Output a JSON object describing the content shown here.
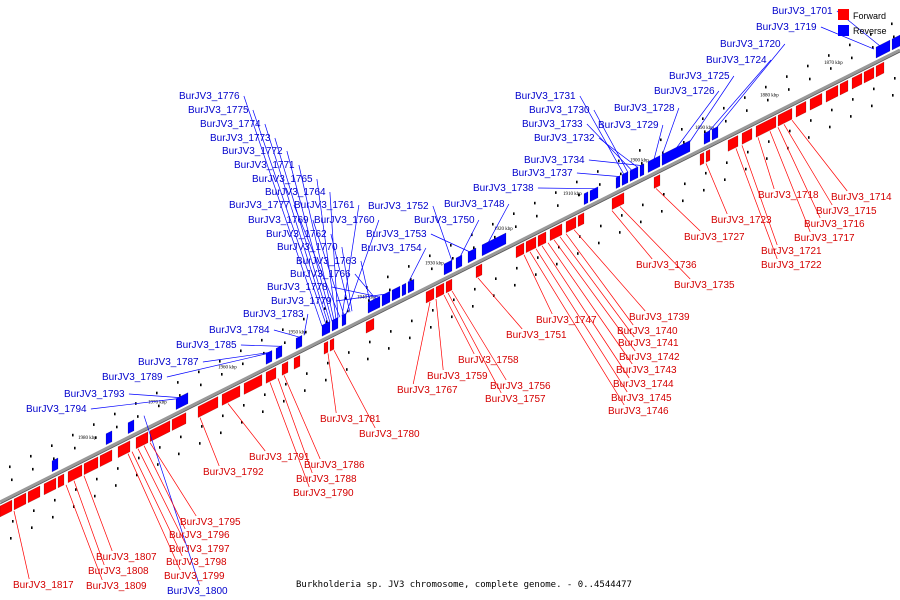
{
  "caption": "Burkholderia sp. JV3 chromosome, complete genome. - 0..4544477",
  "legend": {
    "forward": {
      "label": "Forward",
      "color": "#ff0000"
    },
    "reverse": {
      "label": "Reverse",
      "color": "#0000ff"
    }
  },
  "backbone_color": "#999999",
  "kbp_ticks": [
    "1870 kbp",
    "1880 kbp",
    "1890 kbp",
    "1900 kbp",
    "1910 kbp",
    "1920 kbp",
    "1930 kbp",
    "1940 kbp",
    "1950 kbp",
    "1960 kbp",
    "1970 kbp",
    "1980 kbp"
  ],
  "reverse_genes": [
    "BurJV3_1701",
    "BurJV3_1719",
    "BurJV3_1720",
    "BurJV3_1724",
    "BurJV3_1725",
    "BurJV3_1726",
    "BurJV3_1728",
    "BurJV3_1729",
    "BurJV3_1731",
    "BurJV3_1730",
    "BurJV3_1733",
    "BurJV3_1732",
    "BurJV3_1734",
    "BurJV3_1737",
    "BurJV3_1738",
    "BurJV3_1748",
    "BurJV3_1752",
    "BurJV3_1750",
    "BurJV3_1753",
    "BurJV3_1754",
    "BurJV3_1776",
    "BurJV3_1775",
    "BurJV3_1774",
    "BurJV3_1773",
    "BurJV3_1772",
    "BurJV3_1771",
    "BurJV3_1765",
    "BurJV3_1764",
    "BurJV3_1777",
    "BurJV3_1761",
    "BurJV3_1769",
    "BurJV3_1760",
    "BurJV3_1762",
    "BurJV3_1770",
    "BurJV3_1763",
    "BurJV3_1766",
    "BurJV3_1778",
    "BurJV3_1779",
    "BurJV3_1783",
    "BurJV3_1784",
    "BurJV3_1785",
    "BurJV3_1787",
    "BurJV3_1789",
    "BurJV3_1793",
    "BurJV3_1794",
    "BurJV3_1800"
  ],
  "forward_genes": [
    "BurJV3_1714",
    "BurJV3_1718",
    "BurJV3_1715",
    "BurJV3_1716",
    "BurJV3_1717",
    "BurJV3_1723",
    "BurJV3_1721",
    "BurJV3_1722",
    "BurJV3_1727",
    "BurJV3_1736",
    "BurJV3_1735",
    "BurJV3_1739",
    "BurJV3_1740",
    "BurJV3_1741",
    "BurJV3_1742",
    "BurJV3_1743",
    "BurJV3_1744",
    "BurJV3_1745",
    "BurJV3_1746",
    "BurJV3_1747",
    "BurJV3_1751",
    "BurJV3_1758",
    "BurJV3_1759",
    "BurJV3_1756",
    "BurJV3_1757",
    "BurJV3_1767",
    "BurJV3_1781",
    "BurJV3_1780",
    "BurJV3_1791",
    "BurJV3_1792",
    "BurJV3_1786",
    "BurJV3_1788",
    "BurJV3_1790",
    "BurJV3_1795",
    "BurJV3_1796",
    "BurJV3_1797",
    "BurJV3_1798",
    "BurJV3_1799",
    "BurJV3_1807",
    "BurJV3_1808",
    "BurJV3_1809",
    "BurJV3_1817"
  ]
}
